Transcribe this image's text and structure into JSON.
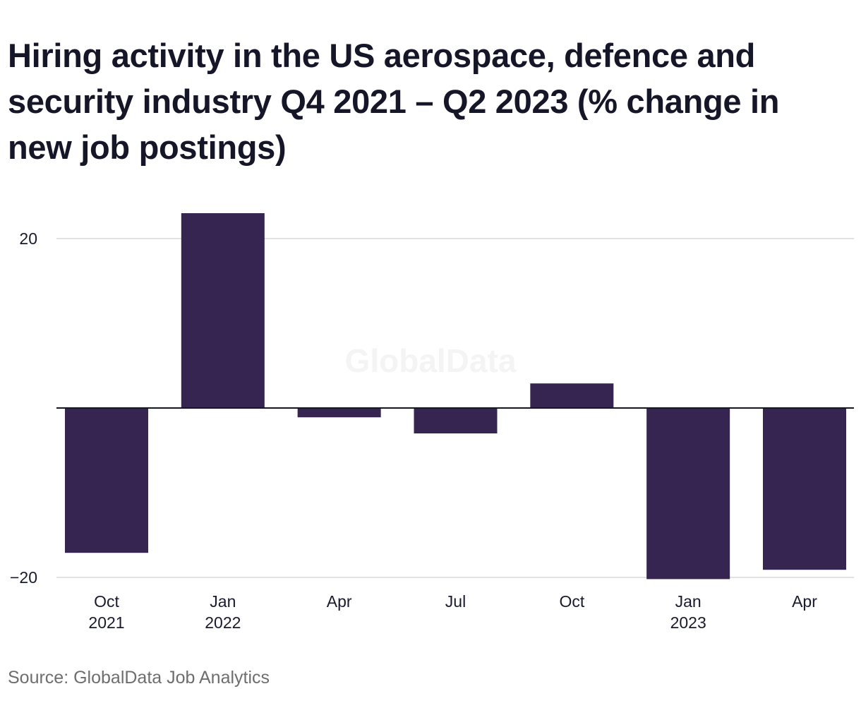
{
  "chart_data": {
    "type": "bar",
    "title": "Hiring activity in the US aerospace, defence and security industry Q4 2021 – Q2 2023 (% change in new job postings)",
    "xlabel": "",
    "ylabel": "",
    "categories": [
      {
        "month": "Oct",
        "year": "2021"
      },
      {
        "month": "Jan",
        "year": "2022"
      },
      {
        "month": "Apr",
        "year": ""
      },
      {
        "month": "Jul",
        "year": ""
      },
      {
        "month": "Oct",
        "year": ""
      },
      {
        "month": "Jan",
        "year": "2023"
      },
      {
        "month": "Apr",
        "year": ""
      }
    ],
    "values": [
      -17.1,
      23.0,
      -1.1,
      -3.0,
      2.9,
      -20.2,
      -19.1
    ],
    "ylim": [
      -20.5,
      25
    ],
    "yticks": [
      -20,
      20
    ],
    "ytick_labels": [
      "−20",
      "20"
    ],
    "grid": true,
    "bar_color": "#362551",
    "watermark": "GlobalData",
    "source": "Source: GlobalData Job Analytics"
  }
}
